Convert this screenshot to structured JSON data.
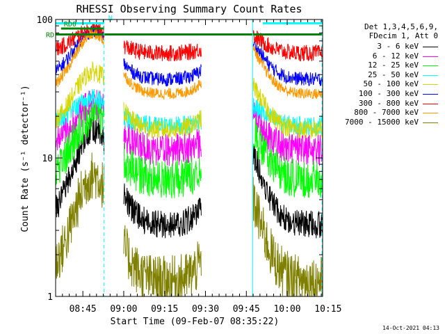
{
  "chart_data": {
    "type": "line",
    "title": "RHESSI Observing Summary Count Rates",
    "xlabel": "Start Time (09-Feb-07 08:35:22)",
    "ylabel": "Count Rate (s⁻¹ detector⁻¹)",
    "yscale": "log",
    "xlim": [
      0,
      98
    ],
    "ylim": [
      1,
      100
    ],
    "x_ticks": [
      {
        "label": "08:45",
        "value": 10
      },
      {
        "label": "09:00",
        "value": 25
      },
      {
        "label": "09:15",
        "value": 40
      },
      {
        "label": "09:30",
        "value": 55
      },
      {
        "label": "09:45",
        "value": 70
      },
      {
        "label": "10:00",
        "value": 85
      },
      {
        "label": "10:15",
        "value": 100
      }
    ],
    "y_ticks": [
      {
        "label": "1",
        "value": 1
      },
      {
        "label": "10",
        "value": 10
      },
      {
        "label": "100",
        "value": 100
      }
    ],
    "legend_header": [
      "Det 1,3,4,5,6,9,",
      "FDecim 1, Att 0"
    ],
    "legend_position": "right",
    "series": [
      {
        "name": "3 - 6 keV",
        "color": "#000000",
        "min": 3.3,
        "max": 16,
        "noise": 0.1
      },
      {
        "name": "6 - 12 keV",
        "color": "#ff00ff",
        "min": 11.5,
        "max": 24,
        "noise": 0.12
      },
      {
        "name": "12 - 25 keV",
        "color": "#00ff00",
        "min": 7.0,
        "max": 20,
        "noise": 0.14
      },
      {
        "name": "25 - 50 keV",
        "color": "#00ffff",
        "min": 17.0,
        "max": 27,
        "noise": 0.07
      },
      {
        "name": "50 - 100 keV",
        "color": "#d6d600",
        "min": 16.0,
        "max": 42,
        "noise": 0.07
      },
      {
        "name": "100 - 300 keV",
        "color": "#0000ff",
        "min": 37.0,
        "max": 82,
        "noise": 0.05
      },
      {
        "name": "300 - 800 keV",
        "color": "#ff0000",
        "min": 57.0,
        "max": 84,
        "noise": 0.06
      },
      {
        "name": "800 - 7000 keV",
        "color": "#ff9900",
        "min": 29.0,
        "max": 78,
        "noise": 0.04
      },
      {
        "name": "7000 - 15000 keV",
        "color": "#808000",
        "min": 1.3,
        "max": 7.5,
        "noise": 0.18
      }
    ],
    "segments": [
      {
        "start": 0,
        "end": 17.8
      },
      {
        "start": 25,
        "end": 53.5
      },
      {
        "start": 72.5,
        "end": 98
      }
    ],
    "orbit_peaks": [
      14,
      67
    ],
    "flag_bars": [
      {
        "label": "N",
        "color": "#00ffff",
        "start": 0,
        "end": 17.8,
        "level": 94,
        "side": "end"
      },
      {
        "label": "N",
        "color": "#00ffff",
        "start": 76,
        "end": 98,
        "level": 94,
        "side": "none"
      },
      {
        "label": "RD0",
        "color": "#008000",
        "start": 2,
        "end": 17.8,
        "level": 86,
        "side": "start"
      },
      {
        "label": "RD",
        "color": "#008000",
        "start": 0,
        "end": 98,
        "level": 78,
        "side": "start"
      }
    ],
    "vertical_markers": [
      {
        "x": 0,
        "style": "solid",
        "color": "#00ffff"
      },
      {
        "x": 17.8,
        "style": "dashed",
        "color": "#00ffff"
      },
      {
        "x": 72.3,
        "style": "solid",
        "color": "#00ffff"
      },
      {
        "x": 97.8,
        "style": "dashed",
        "color": "#00ffff"
      }
    ]
  },
  "footer": {
    "timestamp": "14-Oct-2021 04:13"
  }
}
